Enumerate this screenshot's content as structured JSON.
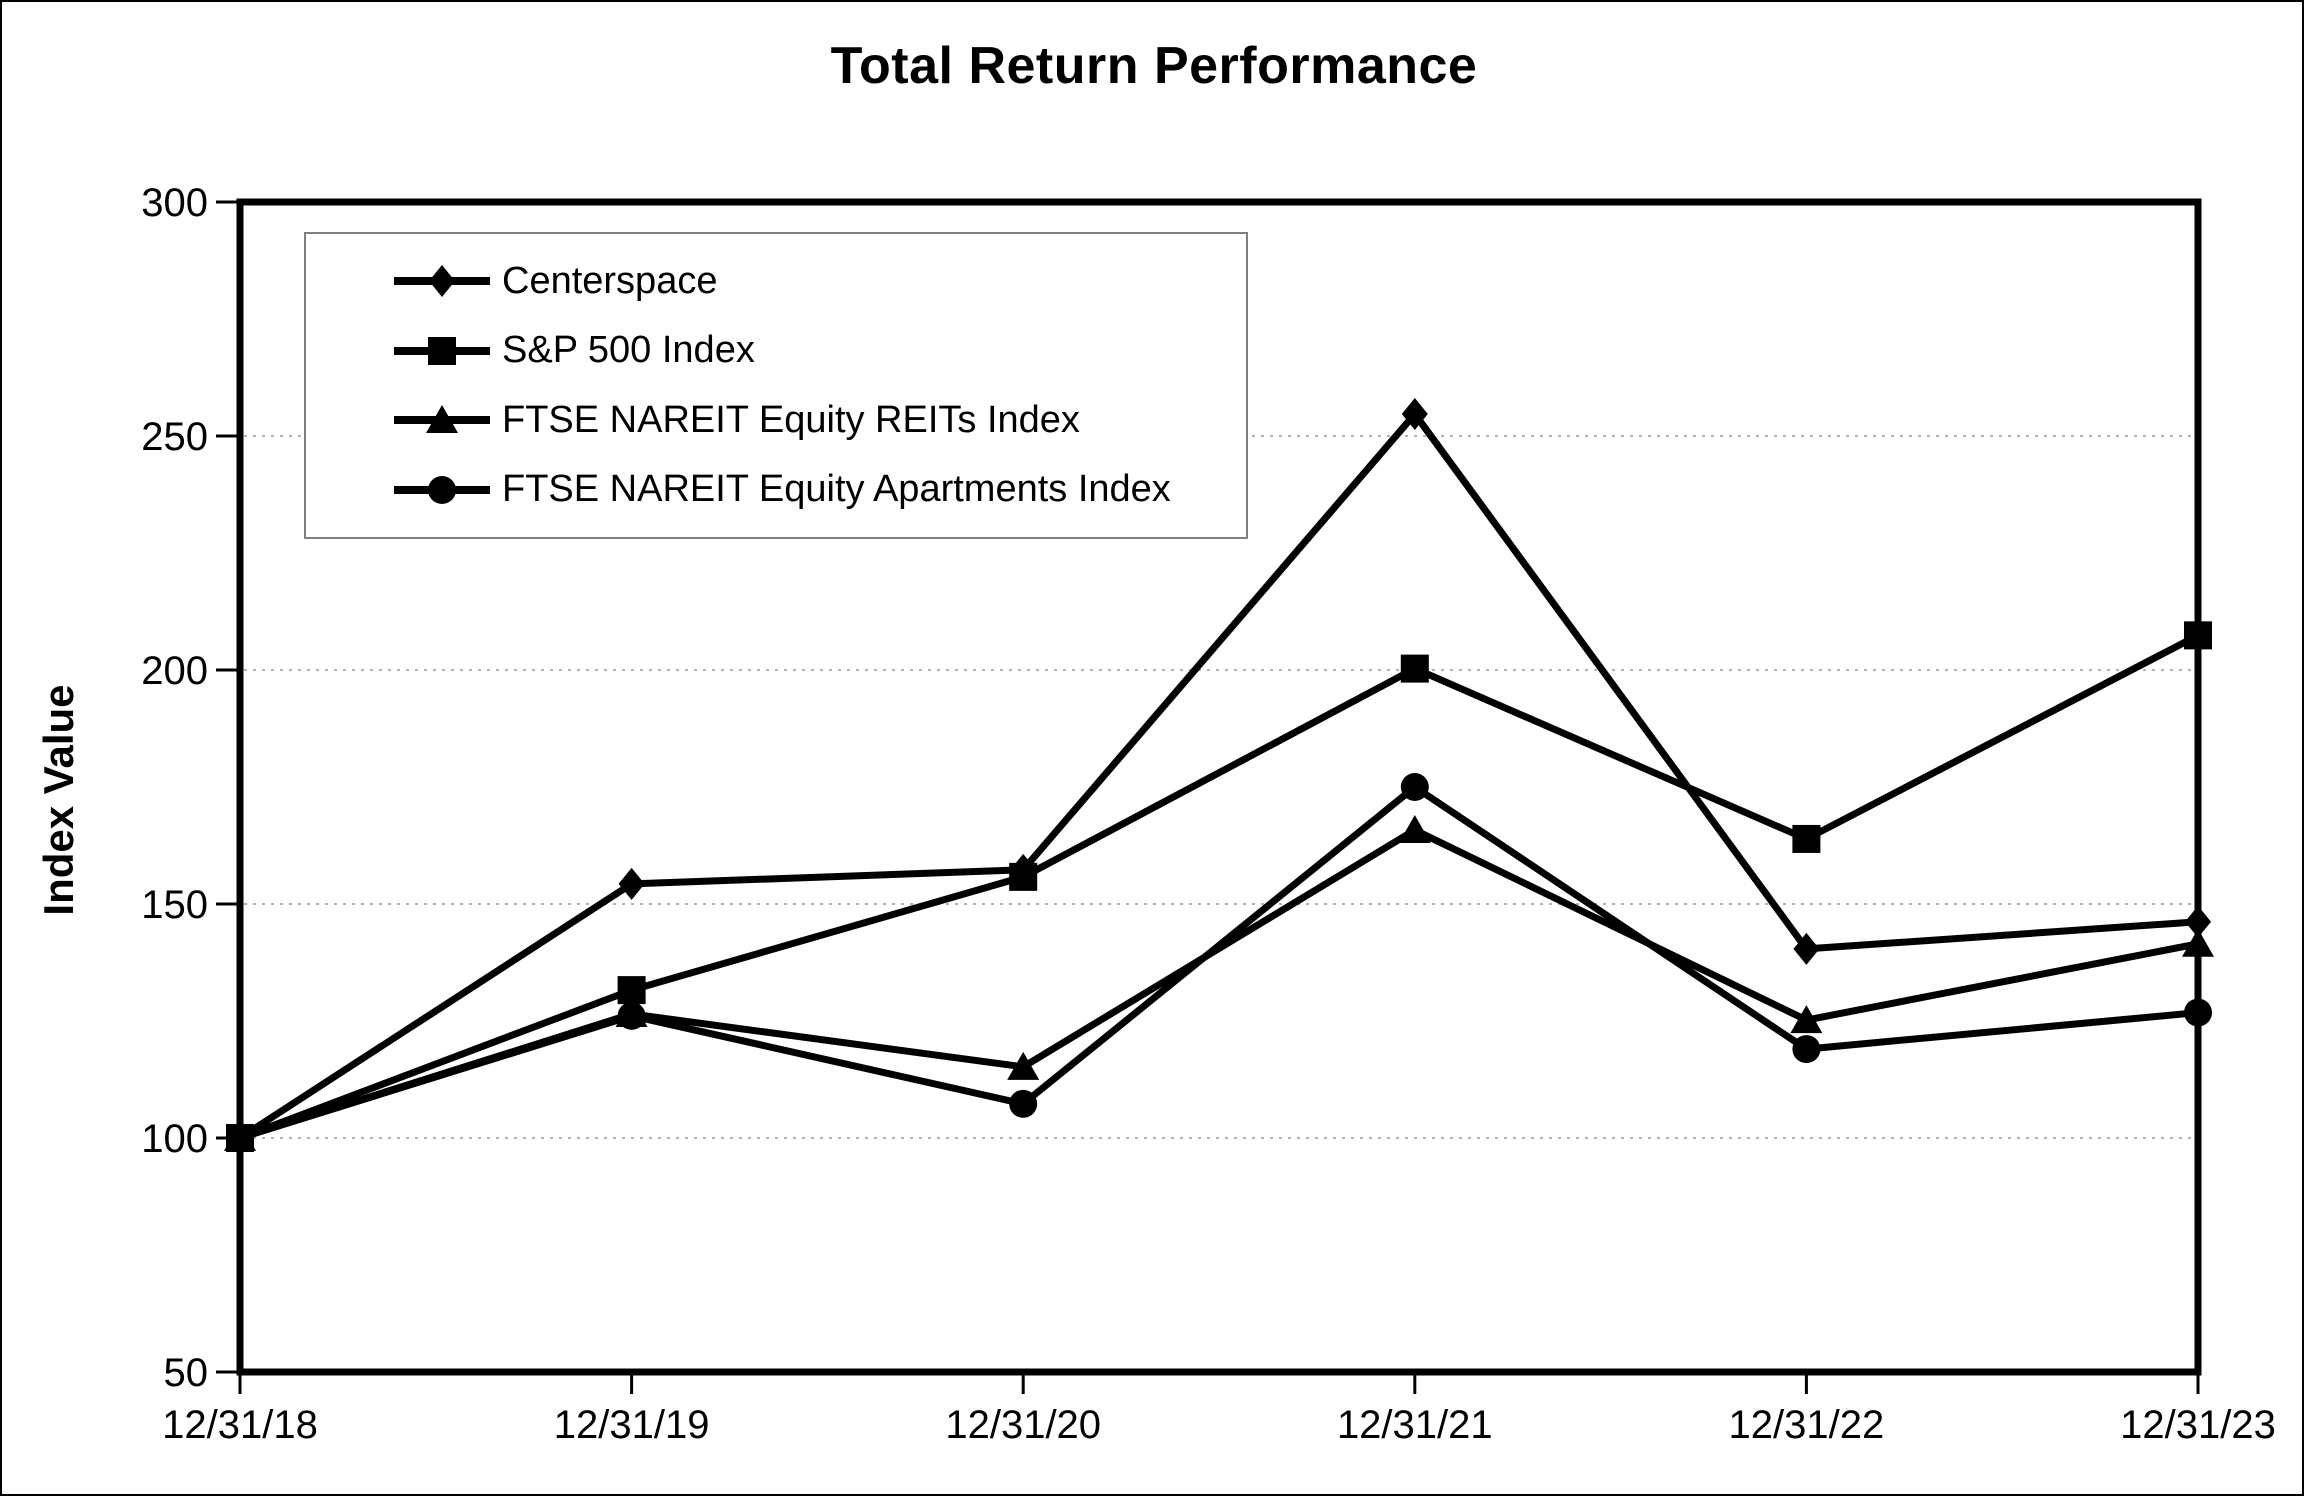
{
  "page": {
    "title": "Total Return Performance"
  },
  "chart_data": {
    "type": "line",
    "title": "Total Return Performance",
    "xlabel": "",
    "ylabel": "Index Value",
    "ylim": [
      50,
      300
    ],
    "yticks": [
      50,
      100,
      150,
      200,
      250,
      300
    ],
    "grid": "horizontal dotted gridlines at interior y ticks",
    "legend_position": "inside top-left",
    "categories": [
      "12/31/18",
      "12/31/19",
      "12/31/20",
      "12/31/21",
      "12/31/22",
      "12/31/23"
    ],
    "series": [
      {
        "name": "Centerspace",
        "marker": "diamond",
        "values": [
          100,
          154.3,
          157.3,
          254.7,
          140.4,
          146.2
        ]
      },
      {
        "name": "S&P 500 Index",
        "marker": "square",
        "values": [
          100,
          131.6,
          155.8,
          200.3,
          163.9,
          207.4
        ]
      },
      {
        "name": "FTSE NAREIT Equity REITs Index",
        "marker": "triangle",
        "values": [
          100,
          126.5,
          115.2,
          165.8,
          125.2,
          141.5
        ]
      },
      {
        "name": "FTSE NAREIT Equity Apartments Index",
        "marker": "circle",
        "values": [
          100,
          126.1,
          107.3,
          175.0,
          119.0,
          126.8
        ]
      }
    ],
    "colors": {
      "series": "#000000",
      "gridline": "#b3b3b3",
      "axis": "#000000",
      "legend_border": "#808080",
      "background": "#ffffff",
      "text": "#000000"
    }
  }
}
